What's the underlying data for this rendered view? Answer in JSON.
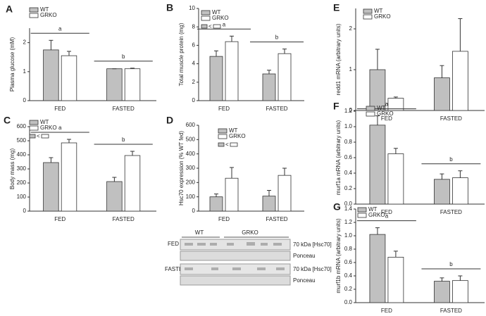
{
  "chart_data": [
    {
      "type": "bar",
      "panel": "A",
      "ylabel": "Plasma glucose (mM)",
      "categories": [
        "FED",
        "FASTED"
      ],
      "series": [
        {
          "name": "WT",
          "color": "#c0c0c0",
          "values": [
            1.75,
            1.1
          ],
          "errors": [
            0.33,
            0
          ]
        },
        {
          "name": "GRKO",
          "color": "#ffffff",
          "values": [
            1.55,
            1.1
          ],
          "errors": [
            0.15,
            0.02
          ]
        }
      ],
      "ylim": [
        0,
        2.5
      ],
      "yticks": [
        0,
        1,
        2
      ],
      "annotations": [
        "a",
        "b"
      ]
    },
    {
      "type": "bar",
      "panel": "B",
      "ylabel": "Total muscle protein (mg)",
      "categories": [
        "FED",
        "FASTED"
      ],
      "series": [
        {
          "name": "WT",
          "color": "#c0c0c0",
          "values": [
            4.8,
            2.9
          ],
          "errors": [
            0.6,
            0.4
          ]
        },
        {
          "name": "GRKO",
          "color": "#ffffff",
          "values": [
            6.4,
            5.1
          ],
          "errors": [
            0.6,
            0.5
          ]
        }
      ],
      "ylim": [
        0,
        10
      ],
      "yticks": [
        0,
        2,
        4,
        6,
        8,
        10
      ],
      "comparison": "<",
      "annotations": [
        "a",
        "b"
      ]
    },
    {
      "type": "bar",
      "panel": "C",
      "ylabel": "Body mass (mg)",
      "categories": [
        "FED",
        "FASTED"
      ],
      "series": [
        {
          "name": "WT",
          "color": "#c0c0c0",
          "values": [
            345,
            210
          ],
          "errors": [
            35,
            30
          ]
        },
        {
          "name": "GRKO",
          "color": "#ffffff",
          "values": [
            485,
            395
          ],
          "errors": [
            25,
            30
          ]
        }
      ],
      "ylim": [
        0,
        600
      ],
      "yticks": [
        0,
        100,
        200,
        300,
        400,
        500,
        600
      ],
      "comparison": "<",
      "annotations": [
        "a",
        "b"
      ]
    },
    {
      "type": "bar",
      "panel": "D",
      "ylabel": "Hsc70 expression (% WT fed)",
      "categories": [
        "FED",
        "FASTED"
      ],
      "series": [
        {
          "name": "WT",
          "color": "#c0c0c0",
          "values": [
            100,
            105
          ],
          "errors": [
            20,
            40
          ]
        },
        {
          "name": "GRKO",
          "color": "#ffffff",
          "values": [
            230,
            250
          ],
          "errors": [
            75,
            50
          ]
        }
      ],
      "ylim": [
        0,
        600
      ],
      "yticks": [
        0,
        100,
        200,
        300,
        400,
        500,
        600
      ],
      "comparison": "<"
    },
    {
      "type": "bar",
      "panel": "E",
      "ylabel": "redd1 mRNA (arbitrary units)",
      "categories": [
        "FED",
        "FASTED"
      ],
      "series": [
        {
          "name": "WT",
          "color": "#c0c0c0",
          "values": [
            1.0,
            0.8
          ],
          "errors": [
            0.5,
            0.3
          ]
        },
        {
          "name": "GRKO",
          "color": "#ffffff",
          "values": [
            0.3,
            1.45
          ],
          "errors": [
            0.03,
            0.8
          ]
        }
      ],
      "ylim": [
        0,
        2.5
      ],
      "yticks": [
        0,
        1,
        2
      ]
    },
    {
      "type": "bar",
      "panel": "F",
      "ylabel": "murf1a mRNA (arbitrary units)",
      "categories": [
        "FED",
        "FASTED"
      ],
      "series": [
        {
          "name": "WT",
          "color": "#c0c0c0",
          "values": [
            1.02,
            0.32
          ],
          "errors": [
            0.12,
            0.07
          ]
        },
        {
          "name": "GRKO",
          "color": "#ffffff",
          "values": [
            0.65,
            0.34
          ],
          "errors": [
            0.07,
            0.09
          ]
        }
      ],
      "ylim": [
        0,
        1.2
      ],
      "yticks": [
        {
          "value": 0,
          "label": "0.0"
        },
        {
          "value": 0.2,
          "label": "0.2"
        },
        {
          "value": 0.4,
          "label": "0.4"
        },
        {
          "value": 0.6,
          "label": "0.6"
        },
        {
          "value": 0.8,
          "label": "0.8"
        },
        {
          "value": 1,
          "label": "1.0"
        },
        {
          "value": 1.2,
          "label": "1.2"
        }
      ],
      "annotations": [
        "a",
        "b"
      ]
    },
    {
      "type": "bar",
      "panel": "G",
      "ylabel": "murf1b mRNA (arbitrary units)",
      "categories": [
        "FED",
        "FASTED"
      ],
      "series": [
        {
          "name": "WT",
          "color": "#c0c0c0",
          "values": [
            1.02,
            0.32
          ],
          "errors": [
            0.1,
            0.05
          ]
        },
        {
          "name": "GRKO",
          "color": "#ffffff",
          "values": [
            0.68,
            0.33
          ],
          "errors": [
            0.09,
            0.07
          ]
        }
      ],
      "ylim": [
        0,
        1.4
      ],
      "yticks": [
        {
          "value": 0,
          "label": "0.0"
        },
        {
          "value": 0.2,
          "label": "0.2"
        },
        {
          "value": 0.4,
          "label": "0.4"
        },
        {
          "value": 0.6,
          "label": "0.6"
        },
        {
          "value": 0.8,
          "label": "0.8"
        },
        {
          "value": 1,
          "label": "1.0"
        },
        {
          "value": 1.2,
          "label": "1.2"
        },
        {
          "value": 1.4,
          "label": "1.4"
        }
      ],
      "annotations": [
        "a",
        "b"
      ]
    }
  ],
  "blot": {
    "groups": [
      "WT",
      "GRKO"
    ],
    "rows": [
      {
        "condition": "FED",
        "lanes": [
          "70 kDa [Hsc70]",
          "Ponceau"
        ]
      },
      {
        "condition": "FASTED",
        "lanes": [
          "70 kDa [Hsc70]",
          "Ponceau"
        ]
      }
    ]
  }
}
